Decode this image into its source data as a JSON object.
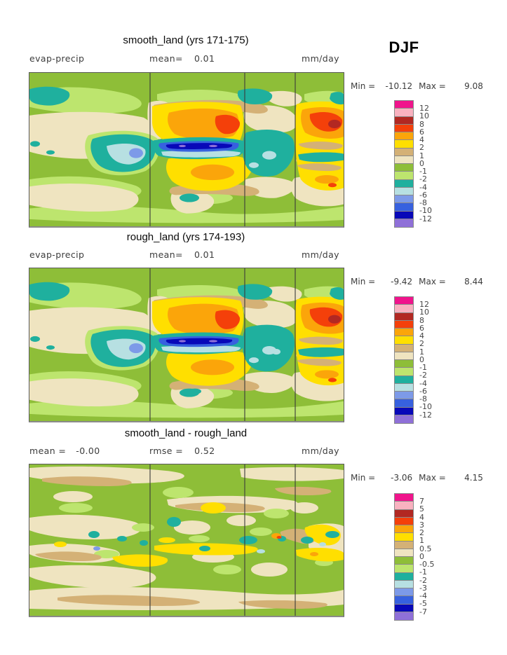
{
  "season": "DJF",
  "colorbar_colors": [
    "#F0148C",
    "#F9B2C0",
    "#B22822",
    "#F4400A",
    "#FBA50A",
    "#FFDF00",
    "#D4B176",
    "#EFE4C0",
    "#8EBE38",
    "#BDE56E",
    "#1FB09E",
    "#B7E0E2",
    "#7D9AE8",
    "#3761DF",
    "#0808B8",
    "#8F70D8"
  ],
  "chart_data": [
    {
      "type": "heatmap",
      "title": "smooth_land (yrs 171-175)",
      "quantity": "evap-precip",
      "units": "mm/day",
      "stats": {
        "mean": 0.01,
        "min": -10.12,
        "max": 9.08
      },
      "legend_levels": [
        12,
        10,
        8,
        6,
        4,
        2,
        1,
        0,
        -1,
        -2,
        -4,
        -6,
        -8,
        -10,
        -12
      ],
      "legend_position": "right",
      "grid": false
    },
    {
      "type": "heatmap",
      "title": "rough_land (yrs 174-193)",
      "quantity": "evap-precip",
      "units": "mm/day",
      "stats": {
        "mean": 0.01,
        "min": -9.42,
        "max": 8.44
      },
      "legend_levels": [
        12,
        10,
        8,
        6,
        4,
        2,
        1,
        0,
        -1,
        -2,
        -4,
        -6,
        -8,
        -10,
        -12
      ],
      "legend_position": "right",
      "grid": false
    },
    {
      "type": "heatmap",
      "title": "smooth_land - rough_land",
      "quantity": "difference",
      "units": "mm/day",
      "stats": {
        "mean": -0.0,
        "rmse": 0.52,
        "min": -3.06,
        "max": 4.15
      },
      "legend_levels": [
        7,
        5,
        4,
        3,
        2,
        1,
        0.5,
        0,
        -0.5,
        -1,
        -2,
        -3,
        -4,
        -5,
        -7
      ],
      "legend_position": "right",
      "grid": false
    }
  ],
  "panels": [
    {
      "title": "smooth_land (yrs 171-175)",
      "left_label": "evap-precip",
      "stats": [
        {
          "label": "mean=",
          "value": "0.01"
        }
      ],
      "unit": "mm/day",
      "minmax": {
        "min_label": "Min =",
        "min": "-10.12",
        "max_label": "Max =",
        "max": "9.08"
      },
      "colorbar_labels": [
        "12",
        "10",
        "8",
        "6",
        "4",
        "2",
        "1",
        "0",
        "-1",
        "-2",
        "-4",
        "-6",
        "-8",
        "-10",
        "-12"
      ]
    },
    {
      "title": "rough_land (yrs 174-193)",
      "left_label": "evap-precip",
      "stats": [
        {
          "label": "mean=",
          "value": "0.01"
        }
      ],
      "unit": "mm/day",
      "minmax": {
        "min_label": "Min =",
        "min": "-9.42",
        "max_label": "Max =",
        "max": "8.44"
      },
      "colorbar_labels": [
        "12",
        "10",
        "8",
        "6",
        "4",
        "2",
        "1",
        "0",
        "-1",
        "-2",
        "-4",
        "-6",
        "-8",
        "-10",
        "-12"
      ]
    },
    {
      "title": "smooth_land - rough_land",
      "stats": [
        {
          "label": "mean =",
          "value": "-0.00"
        },
        {
          "label": "rmse =",
          "value": "0.52"
        }
      ],
      "unit": "mm/day",
      "minmax": {
        "min_label": "Min =",
        "min": "-3.06",
        "max_label": "Max =",
        "max": "4.15"
      },
      "colorbar_labels": [
        "7",
        "5",
        "4",
        "3",
        "2",
        "1",
        "0.5",
        "0",
        "-0.5",
        "-1",
        "-2",
        "-3",
        "-4",
        "-5",
        "-7"
      ]
    }
  ]
}
